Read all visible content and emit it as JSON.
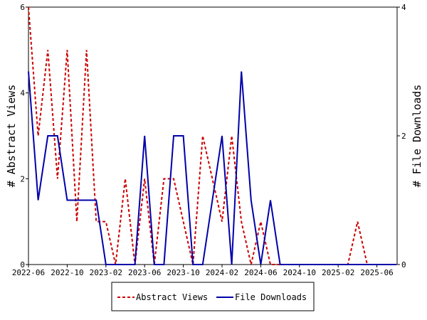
{
  "chart_data": {
    "type": "line",
    "ylabel_left": "# Abstract Views",
    "ylabel_right": "# File Downloads",
    "x_tick_labels": [
      "2022-06",
      "2022-10",
      "2023-02",
      "2023-06",
      "2023-10",
      "2024-02",
      "2024-06",
      "2024-10",
      "2025-02",
      "2025-06"
    ],
    "y_left_ticks": [
      "0",
      "2",
      "4",
      "6"
    ],
    "y_right_ticks": [
      "0",
      "2",
      "4"
    ],
    "y_left_range": [
      0,
      6
    ],
    "y_right_range": [
      0,
      4
    ],
    "legend_position": "bottom",
    "x": [
      "2022-06",
      "2022-07",
      "2022-08",
      "2022-09",
      "2022-10",
      "2022-11",
      "2022-12",
      "2023-01",
      "2023-02",
      "2023-03",
      "2023-04",
      "2023-05",
      "2023-06",
      "2023-07",
      "2023-08",
      "2023-09",
      "2023-10",
      "2023-11",
      "2023-12",
      "2024-01",
      "2024-02",
      "2024-03",
      "2024-04",
      "2024-05",
      "2024-06",
      "2024-07",
      "2024-08",
      "2024-09",
      "2024-10",
      "2024-11",
      "2024-12",
      "2025-01",
      "2025-02",
      "2025-03",
      "2025-04",
      "2025-05",
      "2025-06",
      "2025-07",
      "2025-08"
    ],
    "series": [
      {
        "name": "Abstract Views",
        "axis": "left",
        "color": "#cc0000",
        "dash": "dashed",
        "values": [
          6,
          3,
          5,
          2,
          5,
          1,
          5,
          1,
          1,
          0,
          2,
          0,
          2,
          0,
          2,
          2,
          1,
          0,
          3,
          2,
          1,
          3,
          1,
          0,
          1,
          0,
          0,
          0,
          0,
          0,
          0,
          0,
          0,
          0,
          1,
          0,
          0,
          0,
          0
        ]
      },
      {
        "name": "File Downloads",
        "axis": "right",
        "color": "#0000aa",
        "dash": "solid",
        "values": [
          3,
          1,
          2,
          2,
          1,
          1,
          1,
          1,
          0,
          0,
          0,
          0,
          2,
          0,
          0,
          2,
          2,
          0,
          0,
          1,
          2,
          0,
          3,
          1,
          0,
          1,
          0,
          0,
          0,
          0,
          0,
          0,
          0,
          0,
          0,
          0,
          0,
          0,
          0
        ]
      }
    ]
  }
}
